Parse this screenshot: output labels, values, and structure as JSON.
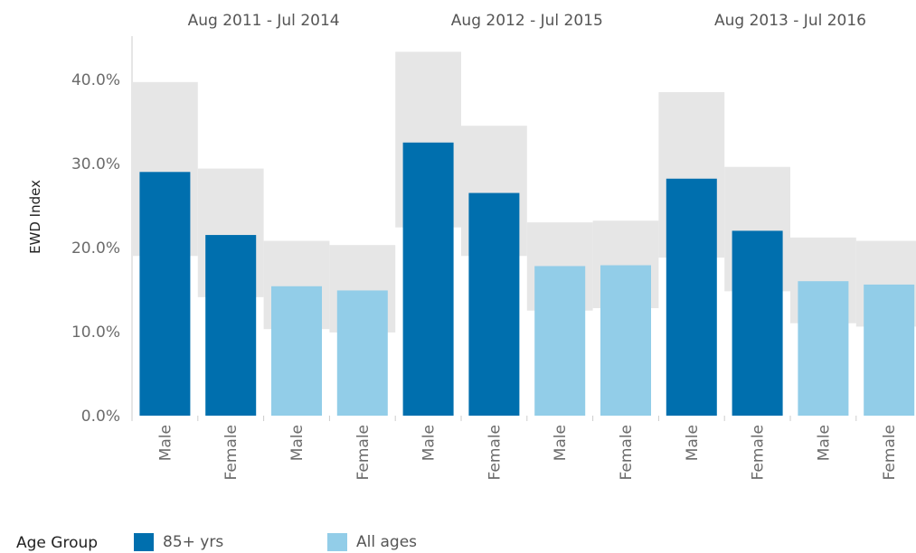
{
  "chart_data": {
    "type": "bar",
    "ylabel": "EWD Index",
    "ylim": [
      0,
      0.45
    ],
    "yticks": [
      "0.0%",
      "10.0%",
      "20.0%",
      "30.0%",
      "40.0%"
    ],
    "groups": [
      {
        "title": "Aug 2011 - Jul 2014",
        "bars": [
          {
            "category": "Male",
            "age_group": "85+ yrs",
            "value": 0.29,
            "ci_low": 0.19,
            "ci_high": 0.397
          },
          {
            "category": "Female",
            "age_group": "85+ yrs",
            "value": 0.215,
            "ci_low": 0.141,
            "ci_high": 0.294
          },
          {
            "category": "Male",
            "age_group": "All ages",
            "value": 0.154,
            "ci_low": 0.103,
            "ci_high": 0.208
          },
          {
            "category": "Female",
            "age_group": "All ages",
            "value": 0.149,
            "ci_low": 0.099,
            "ci_high": 0.203
          }
        ]
      },
      {
        "title": "Aug 2012 - Jul 2015",
        "bars": [
          {
            "category": "Male",
            "age_group": "85+ yrs",
            "value": 0.325,
            "ci_low": 0.224,
            "ci_high": 0.433
          },
          {
            "category": "Female",
            "age_group": "85+ yrs",
            "value": 0.265,
            "ci_low": 0.19,
            "ci_high": 0.345
          },
          {
            "category": "Male",
            "age_group": "All ages",
            "value": 0.178,
            "ci_low": 0.125,
            "ci_high": 0.23
          },
          {
            "category": "Female",
            "age_group": "All ages",
            "value": 0.179,
            "ci_low": 0.128,
            "ci_high": 0.232
          }
        ]
      },
      {
        "title": "Aug 2013 - Jul 2016",
        "bars": [
          {
            "category": "Male",
            "age_group": "85+ yrs",
            "value": 0.282,
            "ci_low": 0.188,
            "ci_high": 0.385
          },
          {
            "category": "Female",
            "age_group": "85+ yrs",
            "value": 0.22,
            "ci_low": 0.148,
            "ci_high": 0.296
          },
          {
            "category": "Male",
            "age_group": "All ages",
            "value": 0.16,
            "ci_low": 0.11,
            "ci_high": 0.212
          },
          {
            "category": "Female",
            "age_group": "All ages",
            "value": 0.156,
            "ci_low": 0.106,
            "ci_high": 0.208
          }
        ]
      }
    ],
    "legend": {
      "title": "Age Group",
      "items": [
        {
          "label": "85+ yrs",
          "color": "#006fae"
        },
        {
          "label": "All ages",
          "color": "#92cde8"
        }
      ]
    },
    "ci_color": "#e6e6e6",
    "grid": false
  }
}
